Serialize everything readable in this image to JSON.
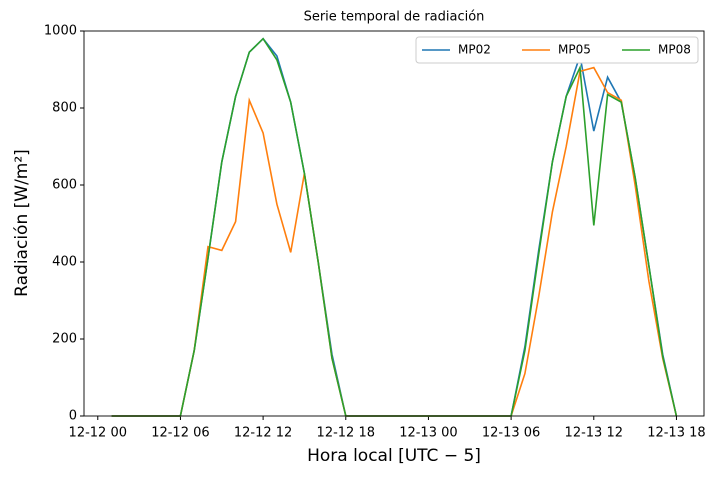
{
  "chart_data": {
    "type": "line",
    "title": "Serie temporal de radiación",
    "xlabel": "Hora local [UTC − 5]",
    "ylabel": "Radiación [W/m²]",
    "x": [
      "12-12 01",
      "12-12 02",
      "12-12 03",
      "12-12 04",
      "12-12 05",
      "12-12 06",
      "12-12 07",
      "12-12 08",
      "12-12 09",
      "12-12 10",
      "12-12 11",
      "12-12 12",
      "12-12 13",
      "12-12 14",
      "12-12 15",
      "12-12 16",
      "12-12 17",
      "12-12 18",
      "12-12 19",
      "12-12 20",
      "12-12 21",
      "12-12 22",
      "12-12 23",
      "12-13 00",
      "12-13 01",
      "12-13 02",
      "12-13 03",
      "12-13 04",
      "12-13 05",
      "12-13 06",
      "12-13 07",
      "12-13 08",
      "12-13 09",
      "12-13 10",
      "12-13 11",
      "12-13 12",
      "12-13 13",
      "12-13 14",
      "12-13 15",
      "12-13 16",
      "12-13 17",
      "12-13 18"
    ],
    "series": [
      {
        "name": "MP02",
        "color": "#1f77b4",
        "values": [
          0,
          0,
          0,
          0,
          0,
          0,
          170,
          410,
          660,
          830,
          945,
          980,
          935,
          815,
          630,
          400,
          160,
          0,
          0,
          0,
          0,
          0,
          0,
          0,
          0,
          0,
          0,
          0,
          0,
          0,
          180,
          430,
          660,
          830,
          935,
          740,
          880,
          815,
          620,
          390,
          160,
          0
        ]
      },
      {
        "name": "MP05",
        "color": "#ff7f0e",
        "values": [
          0,
          0,
          0,
          0,
          0,
          0,
          170,
          440,
          430,
          505,
          820,
          735,
          550,
          425,
          630,
          400,
          150,
          0,
          0,
          0,
          0,
          0,
          0,
          0,
          0,
          0,
          0,
          0,
          0,
          0,
          110,
          310,
          530,
          700,
          895,
          905,
          840,
          820,
          600,
          350,
          150,
          0
        ]
      },
      {
        "name": "MP08",
        "color": "#2ca02c",
        "values": [
          0,
          0,
          0,
          0,
          0,
          0,
          170,
          410,
          660,
          830,
          945,
          980,
          925,
          815,
          630,
          400,
          150,
          0,
          0,
          0,
          0,
          0,
          0,
          0,
          0,
          0,
          0,
          0,
          0,
          0,
          170,
          420,
          660,
          830,
          905,
          495,
          835,
          815,
          620,
          390,
          155,
          0
        ]
      }
    ],
    "xlim": [
      "12-11 23",
      "12-13 20"
    ],
    "xticks": [
      "12-12 00",
      "12-12 06",
      "12-12 12",
      "12-12 18",
      "12-13 00",
      "12-13 06",
      "12-13 12",
      "12-13 18"
    ],
    "ylim": [
      0,
      1000
    ],
    "yticks": [
      0,
      200,
      400,
      600,
      800,
      1000
    ],
    "legend": "upper right"
  }
}
